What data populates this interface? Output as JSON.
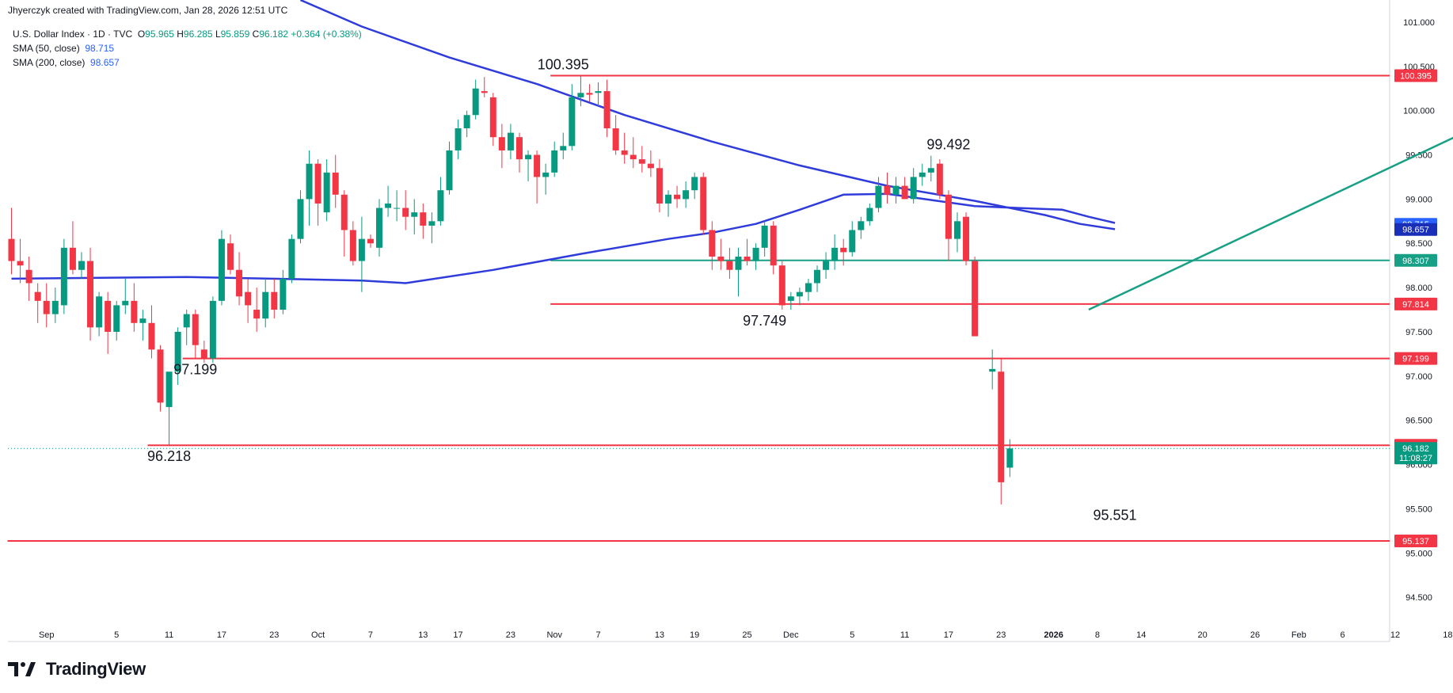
{
  "header": {
    "credit": "Jhyerczyk created with TradingView.com, Jan 28, 2026 12:51 UTC",
    "symbol": "U.S. Dollar Index · 1D · TVC",
    "ohlc": {
      "o_label": "O",
      "o": "95.965",
      "h_label": "H",
      "h": "96.285",
      "l_label": "L",
      "l": "95.859",
      "c_label": "C",
      "c": "96.182",
      "change": "+0.364 (+0.38%)"
    },
    "sma50_label": "SMA (50, close)",
    "sma50_value": "98.715",
    "sma200_label": "SMA (200, close)",
    "sma200_value": "98.657"
  },
  "brand": {
    "name": "TradingView"
  },
  "colors": {
    "up": "#089981",
    "down": "#f23645",
    "sma": "#2f3bdb",
    "trend": "#17a085",
    "support_red": "#f23645",
    "support_green": "#17a085",
    "axis_text": "#131722"
  },
  "chart_data": {
    "type": "candlestick",
    "title": "U.S. Dollar Index · 1D · TVC",
    "ylim": [
      94.0,
      101.25
    ],
    "y_ticks": [
      "101.000",
      "100.500",
      "100.000",
      "99.500",
      "99.000",
      "98.500",
      "98.000",
      "97.500",
      "97.000",
      "96.500",
      "96.000",
      "95.500",
      "95.000",
      "94.500"
    ],
    "x_ticks": [
      "Sep",
      "5",
      "11",
      "17",
      "23",
      "Oct",
      "7",
      "13",
      "17",
      "23",
      "Nov",
      "7",
      "13",
      "19",
      "25",
      "Dec",
      "5",
      "11",
      "17",
      "23",
      "2026",
      "8",
      "14",
      "20",
      "26",
      "Feb",
      "6",
      "12",
      "18"
    ],
    "candles": [
      {
        "o": 98.55,
        "h": 98.9,
        "l": 98.15,
        "c": 98.3
      },
      {
        "o": 98.3,
        "h": 98.55,
        "l": 98.05,
        "c": 98.25
      },
      {
        "o": 98.2,
        "h": 98.35,
        "l": 97.85,
        "c": 98.05
      },
      {
        "o": 97.95,
        "h": 98.05,
        "l": 97.6,
        "c": 97.85
      },
      {
        "o": 97.85,
        "h": 98.05,
        "l": 97.55,
        "c": 97.7
      },
      {
        "o": 97.7,
        "h": 98.0,
        "l": 97.6,
        "c": 97.85
      },
      {
        "o": 97.8,
        "h": 98.55,
        "l": 97.7,
        "c": 98.45
      },
      {
        "o": 98.45,
        "h": 98.75,
        "l": 98.15,
        "c": 98.2
      },
      {
        "o": 98.2,
        "h": 98.4,
        "l": 98.1,
        "c": 98.3
      },
      {
        "o": 98.3,
        "h": 98.45,
        "l": 97.4,
        "c": 97.55
      },
      {
        "o": 97.55,
        "h": 97.95,
        "l": 97.45,
        "c": 97.9
      },
      {
        "o": 97.85,
        "h": 97.95,
        "l": 97.25,
        "c": 97.5
      },
      {
        "o": 97.5,
        "h": 97.85,
        "l": 97.4,
        "c": 97.8
      },
      {
        "o": 97.8,
        "h": 98.1,
        "l": 97.7,
        "c": 97.85
      },
      {
        "o": 97.85,
        "h": 98.05,
        "l": 97.5,
        "c": 97.6
      },
      {
        "o": 97.6,
        "h": 97.75,
        "l": 97.4,
        "c": 97.65
      },
      {
        "o": 97.6,
        "h": 97.8,
        "l": 97.2,
        "c": 97.3
      },
      {
        "o": 97.3,
        "h": 97.35,
        "l": 96.6,
        "c": 96.7
      },
      {
        "o": 96.65,
        "h": 97.0,
        "l": 96.22,
        "c": 97.05
      },
      {
        "o": 97.05,
        "h": 97.55,
        "l": 96.9,
        "c": 97.5
      },
      {
        "o": 97.55,
        "h": 97.75,
        "l": 97.35,
        "c": 97.7
      },
      {
        "o": 97.7,
        "h": 97.75,
        "l": 97.2,
        "c": 97.35
      },
      {
        "o": 97.3,
        "h": 97.4,
        "l": 97.15,
        "c": 97.2
      },
      {
        "o": 97.2,
        "h": 97.9,
        "l": 97.15,
        "c": 97.85
      },
      {
        "o": 97.85,
        "h": 98.65,
        "l": 97.8,
        "c": 98.55
      },
      {
        "o": 98.5,
        "h": 98.6,
        "l": 98.15,
        "c": 98.2
      },
      {
        "o": 98.2,
        "h": 98.4,
        "l": 97.8,
        "c": 97.9
      },
      {
        "o": 97.95,
        "h": 98.1,
        "l": 97.6,
        "c": 97.8
      },
      {
        "o": 97.75,
        "h": 98.0,
        "l": 97.5,
        "c": 97.65
      },
      {
        "o": 97.65,
        "h": 98.1,
        "l": 97.55,
        "c": 97.95
      },
      {
        "o": 97.95,
        "h": 98.1,
        "l": 97.65,
        "c": 97.75
      },
      {
        "o": 97.75,
        "h": 98.2,
        "l": 97.7,
        "c": 98.1
      },
      {
        "o": 98.1,
        "h": 98.6,
        "l": 98.05,
        "c": 98.55
      },
      {
        "o": 98.55,
        "h": 99.1,
        "l": 98.5,
        "c": 99.0
      },
      {
        "o": 99.0,
        "h": 99.55,
        "l": 98.7,
        "c": 99.4
      },
      {
        "o": 99.4,
        "h": 99.45,
        "l": 98.7,
        "c": 98.95
      },
      {
        "o": 98.85,
        "h": 99.45,
        "l": 98.75,
        "c": 99.3
      },
      {
        "o": 99.3,
        "h": 99.5,
        "l": 98.9,
        "c": 99.05
      },
      {
        "o": 99.05,
        "h": 99.1,
        "l": 98.35,
        "c": 98.65
      },
      {
        "o": 98.65,
        "h": 98.75,
        "l": 98.25,
        "c": 98.3
      },
      {
        "o": 98.3,
        "h": 98.8,
        "l": 97.95,
        "c": 98.55
      },
      {
        "o": 98.55,
        "h": 98.6,
        "l": 98.45,
        "c": 98.5
      },
      {
        "o": 98.45,
        "h": 99.0,
        "l": 98.35,
        "c": 98.9
      },
      {
        "o": 98.9,
        "h": 99.15,
        "l": 98.8,
        "c": 98.95
      },
      {
        "o": 98.9,
        "h": 99.1,
        "l": 98.75,
        "c": 98.9
      },
      {
        "o": 98.9,
        "h": 99.1,
        "l": 98.65,
        "c": 98.8
      },
      {
        "o": 98.8,
        "h": 99.0,
        "l": 98.6,
        "c": 98.85
      },
      {
        "o": 98.85,
        "h": 98.95,
        "l": 98.55,
        "c": 98.7
      },
      {
        "o": 98.7,
        "h": 98.85,
        "l": 98.5,
        "c": 98.75
      },
      {
        "o": 98.75,
        "h": 99.25,
        "l": 98.7,
        "c": 99.1
      },
      {
        "o": 99.1,
        "h": 99.65,
        "l": 99.05,
        "c": 99.55
      },
      {
        "o": 99.55,
        "h": 99.9,
        "l": 99.45,
        "c": 99.8
      },
      {
        "o": 99.8,
        "h": 100.0,
        "l": 99.7,
        "c": 99.95
      },
      {
        "o": 99.95,
        "h": 100.35,
        "l": 99.9,
        "c": 100.25
      },
      {
        "o": 100.22,
        "h": 100.38,
        "l": 100.15,
        "c": 100.2
      },
      {
        "o": 100.15,
        "h": 100.2,
        "l": 99.6,
        "c": 99.7
      },
      {
        "o": 99.7,
        "h": 99.85,
        "l": 99.35,
        "c": 99.55
      },
      {
        "o": 99.55,
        "h": 99.85,
        "l": 99.45,
        "c": 99.75
      },
      {
        "o": 99.7,
        "h": 99.75,
        "l": 99.3,
        "c": 99.45
      },
      {
        "o": 99.45,
        "h": 99.55,
        "l": 99.2,
        "c": 99.5
      },
      {
        "o": 99.5,
        "h": 99.55,
        "l": 98.95,
        "c": 99.25
      },
      {
        "o": 99.25,
        "h": 99.4,
        "l": 99.05,
        "c": 99.3
      },
      {
        "o": 99.3,
        "h": 99.65,
        "l": 99.25,
        "c": 99.55
      },
      {
        "o": 99.55,
        "h": 99.75,
        "l": 99.45,
        "c": 99.6
      },
      {
        "o": 99.6,
        "h": 100.3,
        "l": 99.55,
        "c": 100.15
      },
      {
        "o": 100.15,
        "h": 100.4,
        "l": 100.05,
        "c": 100.2
      },
      {
        "o": 100.2,
        "h": 100.3,
        "l": 100.1,
        "c": 100.18
      },
      {
        "o": 100.2,
        "h": 100.32,
        "l": 100.05,
        "c": 100.22
      },
      {
        "o": 100.22,
        "h": 100.35,
        "l": 99.7,
        "c": 99.8
      },
      {
        "o": 99.8,
        "h": 99.95,
        "l": 99.5,
        "c": 99.55
      },
      {
        "o": 99.55,
        "h": 99.75,
        "l": 99.4,
        "c": 99.5
      },
      {
        "o": 99.5,
        "h": 99.7,
        "l": 99.35,
        "c": 99.45
      },
      {
        "o": 99.45,
        "h": 99.6,
        "l": 99.3,
        "c": 99.4
      },
      {
        "o": 99.4,
        "h": 99.55,
        "l": 99.25,
        "c": 99.35
      },
      {
        "o": 99.35,
        "h": 99.45,
        "l": 98.85,
        "c": 98.95
      },
      {
        "o": 98.95,
        "h": 99.1,
        "l": 98.8,
        "c": 99.05
      },
      {
        "o": 99.05,
        "h": 99.15,
        "l": 98.9,
        "c": 99.0
      },
      {
        "o": 99.0,
        "h": 99.2,
        "l": 98.9,
        "c": 99.1
      },
      {
        "o": 99.1,
        "h": 99.3,
        "l": 99.0,
        "c": 99.25
      },
      {
        "o": 99.25,
        "h": 99.3,
        "l": 98.6,
        "c": 98.65
      },
      {
        "o": 98.65,
        "h": 98.75,
        "l": 98.2,
        "c": 98.35
      },
      {
        "o": 98.35,
        "h": 98.55,
        "l": 98.2,
        "c": 98.3
      },
      {
        "o": 98.3,
        "h": 98.45,
        "l": 98.1,
        "c": 98.2
      },
      {
        "o": 98.2,
        "h": 98.45,
        "l": 97.9,
        "c": 98.35
      },
      {
        "o": 98.35,
        "h": 98.55,
        "l": 98.25,
        "c": 98.3
      },
      {
        "o": 98.3,
        "h": 98.5,
        "l": 98.2,
        "c": 98.45
      },
      {
        "o": 98.45,
        "h": 98.75,
        "l": 98.35,
        "c": 98.7
      },
      {
        "o": 98.7,
        "h": 98.75,
        "l": 98.15,
        "c": 98.25
      },
      {
        "o": 98.25,
        "h": 98.3,
        "l": 97.75,
        "c": 97.8
      },
      {
        "o": 97.85,
        "h": 97.95,
        "l": 97.75,
        "c": 97.9
      },
      {
        "o": 97.9,
        "h": 98.0,
        "l": 97.8,
        "c": 97.95
      },
      {
        "o": 97.95,
        "h": 98.1,
        "l": 97.85,
        "c": 98.05
      },
      {
        "o": 98.05,
        "h": 98.25,
        "l": 97.95,
        "c": 98.2
      },
      {
        "o": 98.2,
        "h": 98.4,
        "l": 98.1,
        "c": 98.3
      },
      {
        "o": 98.3,
        "h": 98.6,
        "l": 98.2,
        "c": 98.45
      },
      {
        "o": 98.45,
        "h": 98.55,
        "l": 98.25,
        "c": 98.4
      },
      {
        "o": 98.4,
        "h": 98.75,
        "l": 98.35,
        "c": 98.65
      },
      {
        "o": 98.65,
        "h": 98.8,
        "l": 98.55,
        "c": 98.75
      },
      {
        "o": 98.75,
        "h": 98.95,
        "l": 98.7,
        "c": 98.9
      },
      {
        "o": 98.9,
        "h": 99.25,
        "l": 98.85,
        "c": 99.15
      },
      {
        "o": 99.15,
        "h": 99.3,
        "l": 98.95,
        "c": 99.05
      },
      {
        "o": 99.05,
        "h": 99.25,
        "l": 98.95,
        "c": 99.15
      },
      {
        "o": 99.15,
        "h": 99.25,
        "l": 99.0,
        "c": 99.0
      },
      {
        "o": 99.0,
        "h": 99.35,
        "l": 98.95,
        "c": 99.25
      },
      {
        "o": 99.25,
        "h": 99.4,
        "l": 99.15,
        "c": 99.3
      },
      {
        "o": 99.3,
        "h": 99.49,
        "l": 99.2,
        "c": 99.35
      },
      {
        "o": 99.4,
        "h": 99.45,
        "l": 99.0,
        "c": 99.05
      },
      {
        "o": 99.05,
        "h": 99.1,
        "l": 98.3,
        "c": 98.55
      },
      {
        "o": 98.55,
        "h": 98.85,
        "l": 98.4,
        "c": 98.75
      },
      {
        "o": 98.8,
        "h": 98.85,
        "l": 98.25,
        "c": 98.3
      },
      {
        "o": 98.3,
        "h": 98.35,
        "l": 97.45,
        "c": 97.45
      },
      null,
      {
        "o": 97.05,
        "h": 97.3,
        "l": 96.85,
        "c": 97.08
      },
      {
        "o": 97.05,
        "h": 97.2,
        "l": 95.55,
        "c": 95.8
      },
      {
        "o": 95.965,
        "h": 96.285,
        "l": 95.859,
        "c": 96.182
      }
    ],
    "sma50": [
      [
        0,
        98.1
      ],
      [
        20,
        98.12
      ],
      [
        40,
        98.08
      ],
      [
        45,
        98.05
      ],
      [
        55,
        98.2
      ],
      [
        65,
        98.38
      ],
      [
        75,
        98.55
      ],
      [
        80,
        98.62
      ],
      [
        85,
        98.72
      ],
      [
        90,
        98.88
      ],
      [
        95,
        99.05
      ],
      [
        100,
        99.06
      ],
      [
        105,
        98.99
      ],
      [
        110,
        98.92
      ],
      [
        115,
        98.9
      ],
      [
        120,
        98.88
      ],
      [
        123,
        98.8
      ],
      [
        126,
        98.73
      ]
    ],
    "sma200": [
      [
        33,
        101.25
      ],
      [
        40,
        100.95
      ],
      [
        50,
        100.6
      ],
      [
        60,
        100.3
      ],
      [
        70,
        99.95
      ],
      [
        80,
        99.65
      ],
      [
        90,
        99.38
      ],
      [
        100,
        99.15
      ],
      [
        110,
        98.98
      ],
      [
        118,
        98.82
      ],
      [
        122,
        98.72
      ],
      [
        126,
        98.66
      ]
    ],
    "trendline": {
      "from": [
        123,
        97.75
      ],
      "to": [
        198,
        101.25
      ]
    },
    "levels": [
      {
        "value": 100.395,
        "label": "100.395",
        "color": "red",
        "from_index": 62
      },
      {
        "value": 98.307,
        "label": "98.307",
        "color": "green",
        "from_index": 62
      },
      {
        "value": 97.814,
        "label": "97.814",
        "color": "red",
        "from_index": 62
      },
      {
        "value": 97.199,
        "label": "97.199",
        "color": "red",
        "from_index": 20
      },
      {
        "value": 96.218,
        "label": "96.218",
        "color": "red",
        "from_index": 16
      },
      {
        "value": 95.137,
        "label": "95.137",
        "color": "red",
        "from_index": 0
      }
    ],
    "annotations": [
      {
        "text": "100.395",
        "index": 63,
        "value": 100.395,
        "pos": "above"
      },
      {
        "text": "99.492",
        "index": 107,
        "value": 99.492,
        "pos": "above"
      },
      {
        "text": "97.749",
        "index": 86,
        "value": 97.749,
        "pos": "below"
      },
      {
        "text": "97.199",
        "index": 21,
        "value": 97.199,
        "pos": "below"
      },
      {
        "text": "96.218",
        "index": 18,
        "value": 96.218,
        "pos": "below"
      },
      {
        "text": "95.551",
        "index": 126,
        "value": 95.551,
        "pos": "below"
      }
    ],
    "price_labels": [
      {
        "text": "100.395",
        "value": 100.395,
        "color": "#f23645"
      },
      {
        "text": "98.715",
        "value": 98.715,
        "color": "#2962ff"
      },
      {
        "text": "98.657",
        "value": 98.657,
        "color": "#1a2fb8"
      },
      {
        "text": "98.307",
        "value": 98.307,
        "color": "#17a085"
      },
      {
        "text": "97.814",
        "value": 97.814,
        "color": "#f23645"
      },
      {
        "text": "97.199",
        "value": 97.199,
        "color": "#f23645"
      },
      {
        "text": "96.218",
        "value": 96.218,
        "color": "#f23645"
      },
      {
        "text": "96.182",
        "value": 96.182,
        "color": "#089981",
        "sub": "11:08:27"
      },
      {
        "text": "95.137",
        "value": 95.137,
        "color": "#f23645"
      }
    ]
  }
}
